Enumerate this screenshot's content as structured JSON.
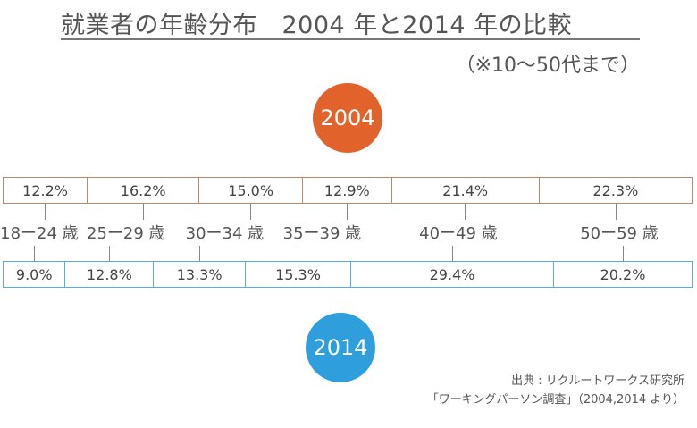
{
  "title": "就業者の年齢分布　2004 年と2014 年の比較",
  "subtitle": "（※10〜50代まで）",
  "source": {
    "line1": "出典 : リクルートワークス研究所",
    "line2": "「ワーキングパーソン調査」（2004,2014 より）"
  },
  "colors": {
    "accent_2004": "#e2622b",
    "accent_2014": "#2e9fdc",
    "border_2004": "#b98a6a",
    "border_2014": "#5aaed9"
  },
  "chart_data": {
    "type": "table",
    "categories": [
      "18ー24 歳",
      "25ー29 歳",
      "30ー34 歳",
      "35ー39 歳",
      "40ー49 歳",
      "50ー59 歳"
    ],
    "series": [
      {
        "name": "2004",
        "values": [
          12.2,
          16.2,
          15.0,
          12.9,
          21.4,
          22.3
        ],
        "labels": [
          "12.2%",
          "16.2%",
          "15.0%",
          "12.9%",
          "21.4%",
          "22.3%"
        ]
      },
      {
        "name": "2014",
        "values": [
          9.0,
          12.8,
          13.3,
          15.3,
          29.4,
          20.2
        ],
        "labels": [
          "9.0%",
          "12.8%",
          "13.3%",
          "15.3%",
          "29.4%",
          "20.2%"
        ]
      }
    ],
    "unit": "%"
  }
}
